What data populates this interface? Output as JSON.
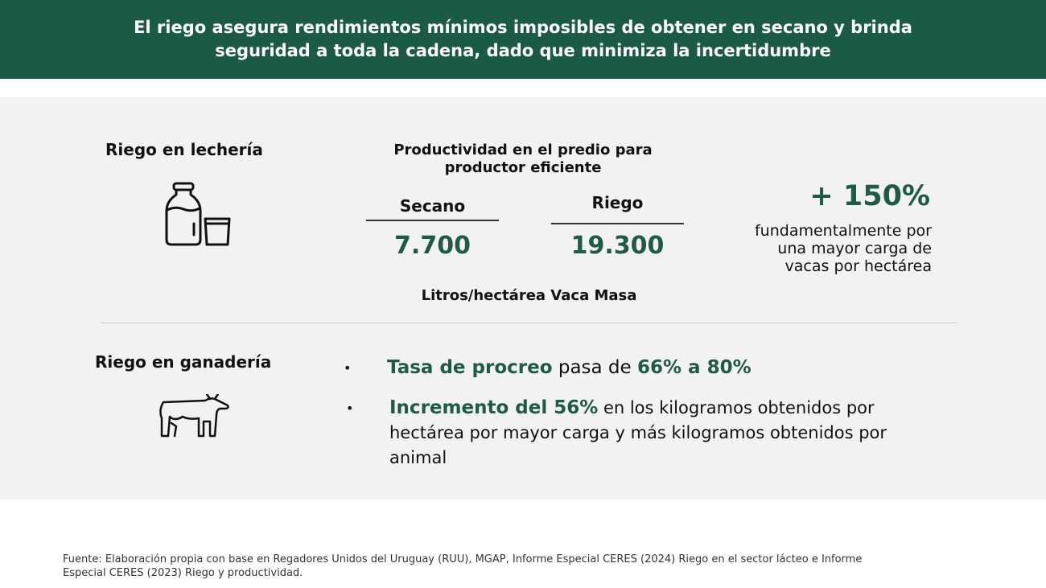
{
  "header": {
    "title_line1": "El riego asegura rendimientos mínimos imposibles de obtener en secano y brinda",
    "title_line2": "seguridad a toda la cadena, dado que minimiza la incertidumbre"
  },
  "dairy": {
    "title": "Riego en lechería",
    "icon": "milk-bottle-glass-icon",
    "productivity_title_line1": "Productividad en el predio para",
    "productivity_title_line2": "productor eficiente",
    "secano_label": "Secano",
    "secano_value": "7.700",
    "riego_label": "Riego",
    "riego_value": "19.300",
    "unit": "Litros/hectárea Vaca Masa",
    "increase": "+ 150%",
    "increase_note_line1": "fundamentalmente por",
    "increase_note_line2": "una mayor carga de",
    "increase_note_line3": "vacas por hectárea"
  },
  "livestock": {
    "title": "Riego en ganadería",
    "icon": "cow-icon",
    "bullet1": {
      "strong": "Tasa de procreo",
      "text": " pasa de ",
      "strong2": "66% a 80%"
    },
    "bullet2": {
      "strong": "Incremento del 56%",
      "text_line1": " en los kilogramos obtenidos por",
      "text_line2": "hectárea por mayor carga y más kilogramos obtenidos por",
      "text_line3": "animal"
    }
  },
  "footer": {
    "source_line1": "Fuente: Elaboración propia con base en Regadores Unidos del Uruguay (RUU), MGAP, Informe Especial CERES (2024) Riego en el sector lácteo e Informe",
    "source_line2": "Especial CERES (2023) Riego y productividad."
  },
  "colors": {
    "brand": "#1b5a44",
    "panel": "#f2f2f2"
  }
}
